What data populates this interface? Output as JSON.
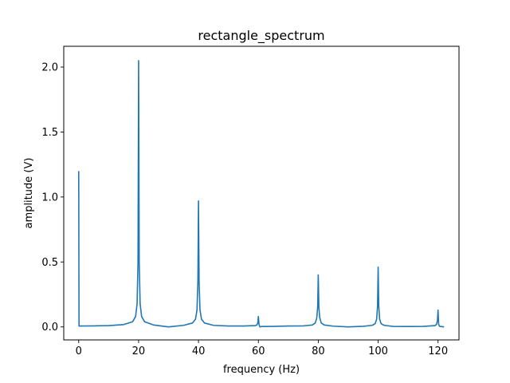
{
  "chart_data": {
    "type": "line",
    "title": "rectangle_spectrum",
    "xlabel": "frequency (Hz)",
    "ylabel": "amplitude (V)",
    "xlim": [
      -5,
      127
    ],
    "ylim": [
      -0.1,
      2.16
    ],
    "xticks": [
      0,
      20,
      40,
      60,
      80,
      100,
      120
    ],
    "xtick_labels": [
      "0",
      "20",
      "40",
      "60",
      "80",
      "100",
      "120"
    ],
    "yticks": [
      0.0,
      0.5,
      1.0,
      1.5,
      2.0
    ],
    "ytick_labels": [
      "0.0",
      "0.5",
      "1.0",
      "1.5",
      "2.0"
    ],
    "grid": false,
    "series": [
      {
        "color": "#1f77b4",
        "x": [
          0,
          0.1,
          1,
          5,
          10,
          15,
          18,
          19,
          19.5,
          19.8,
          20,
          20.2,
          20.5,
          21,
          22,
          25,
          30,
          35,
          38,
          39,
          39.5,
          39.8,
          40,
          40.2,
          40.5,
          41,
          42,
          45,
          50,
          55,
          59,
          59.5,
          59.8,
          60,
          60.2,
          60.5,
          61,
          65,
          70,
          75,
          78,
          79,
          79.5,
          79.8,
          80,
          80.2,
          80.5,
          81,
          82,
          85,
          90,
          95,
          98,
          99,
          99.5,
          99.8,
          100,
          100.2,
          100.5,
          101,
          102,
          105,
          110,
          115,
          119,
          119.5,
          119.8,
          120,
          120.2,
          120.5,
          121,
          122
        ],
        "y": [
          1.2,
          0.007,
          0.007,
          0.008,
          0.01,
          0.018,
          0.04,
          0.08,
          0.18,
          0.5,
          2.05,
          0.5,
          0.18,
          0.08,
          0.04,
          0.015,
          0.0,
          0.012,
          0.03,
          0.06,
          0.13,
          0.35,
          0.97,
          0.35,
          0.13,
          0.06,
          0.03,
          0.012,
          0.007,
          0.007,
          0.01,
          0.015,
          0.03,
          0.08,
          0.02,
          0.0,
          0.003,
          0.004,
          0.007,
          0.008,
          0.015,
          0.03,
          0.07,
          0.15,
          0.4,
          0.15,
          0.07,
          0.03,
          0.015,
          0.006,
          0.0,
          0.005,
          0.012,
          0.025,
          0.06,
          0.16,
          0.46,
          0.16,
          0.06,
          0.025,
          0.012,
          0.004,
          0.003,
          0.004,
          0.01,
          0.02,
          0.05,
          0.13,
          0.02,
          0.005,
          0.003,
          0.0
        ]
      }
    ]
  }
}
